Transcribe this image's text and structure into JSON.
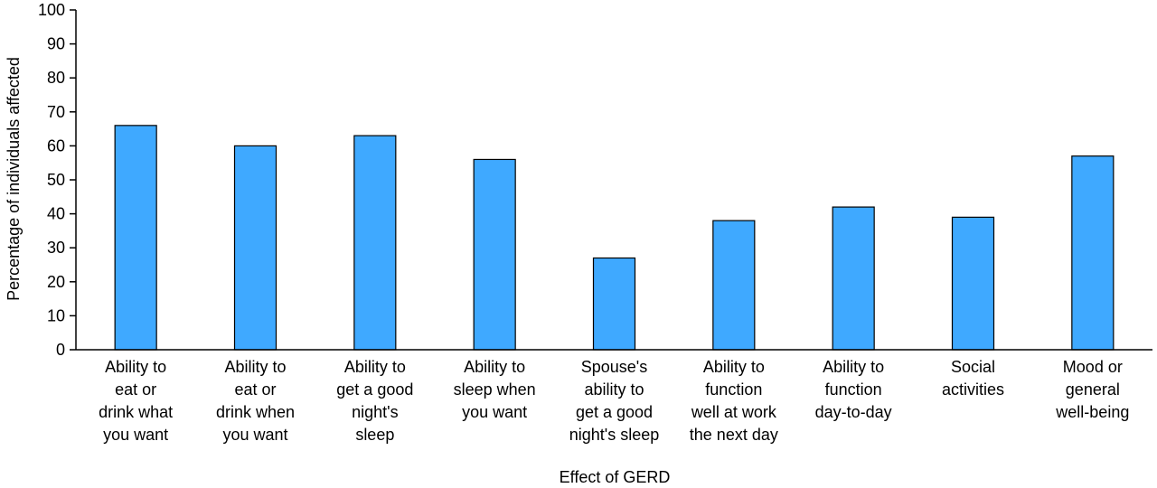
{
  "chart_data": {
    "type": "bar",
    "title": "",
    "xlabel": "Effect of GERD",
    "ylabel": "Percentage of individuals affected",
    "ylim": [
      0,
      100
    ],
    "yticks": [
      0,
      10,
      20,
      30,
      40,
      50,
      60,
      70,
      80,
      90,
      100
    ],
    "grid": false,
    "bar_color": "#3fa9ff",
    "categories": [
      [
        "Ability to",
        "eat or",
        "drink what",
        "you want"
      ],
      [
        "Ability to",
        "eat or",
        "drink when",
        "you want"
      ],
      [
        "Ability to",
        "get a good",
        "night's",
        "sleep"
      ],
      [
        "Ability to",
        "sleep when",
        "you want"
      ],
      [
        "Spouse's",
        "ability to",
        "get a good",
        "night's sleep"
      ],
      [
        "Ability to",
        "function",
        "well at work",
        "the next day"
      ],
      [
        "Ability to",
        "function",
        "day-to-day"
      ],
      [
        "Social",
        "activities"
      ],
      [
        "Mood or",
        "general",
        "well-being"
      ]
    ],
    "values": [
      66,
      60,
      63,
      56,
      27,
      38,
      42,
      39,
      57
    ]
  }
}
